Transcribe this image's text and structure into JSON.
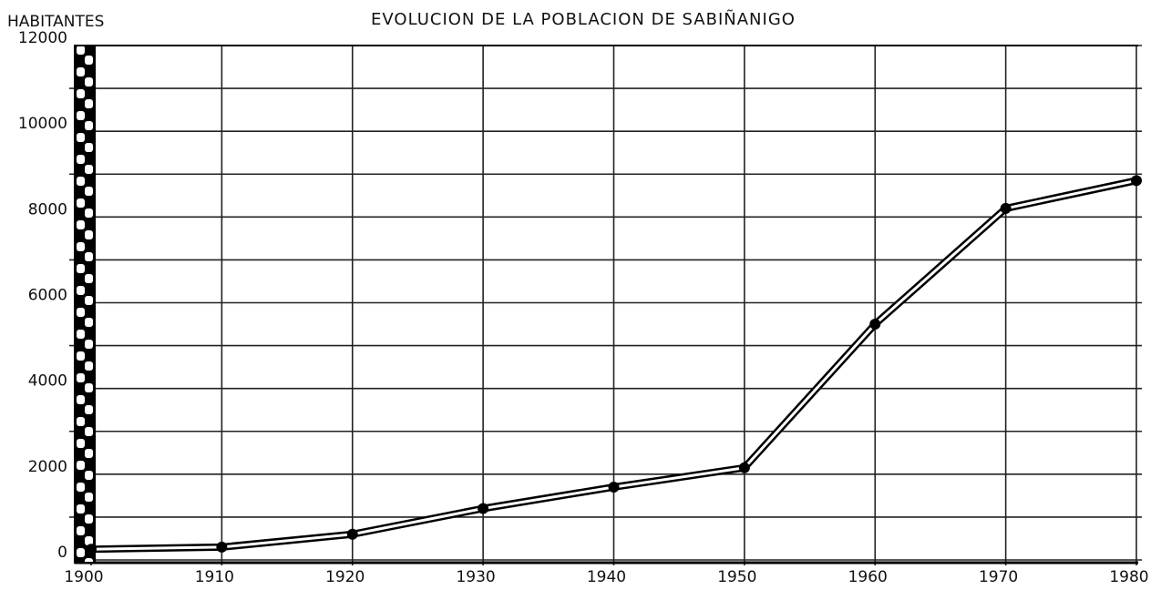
{
  "chart_data": {
    "type": "line",
    "title": "EVOLUCION DE LA POBLACION DE SABIÑANIGO",
    "y_label": "HABITANTES",
    "x": [
      1900,
      1910,
      1920,
      1930,
      1940,
      1950,
      1960,
      1970,
      1980
    ],
    "series": [
      {
        "color": "#000000",
        "values": [
          250,
          300,
          600,
          1200,
          1700,
          2150,
          5500,
          8200,
          8850
        ]
      }
    ],
    "xlim": [
      1900,
      1980
    ],
    "xticks": [
      1900,
      1910,
      1920,
      1930,
      1940,
      1950,
      1960,
      1970,
      1980
    ],
    "ylim": [
      0,
      12000
    ],
    "yticks": [
      0,
      2000,
      4000,
      6000,
      8000,
      10000,
      12000
    ],
    "minor_yticks": [
      1000,
      3000,
      5000,
      7000,
      9000,
      11000
    ],
    "grid": true
  }
}
